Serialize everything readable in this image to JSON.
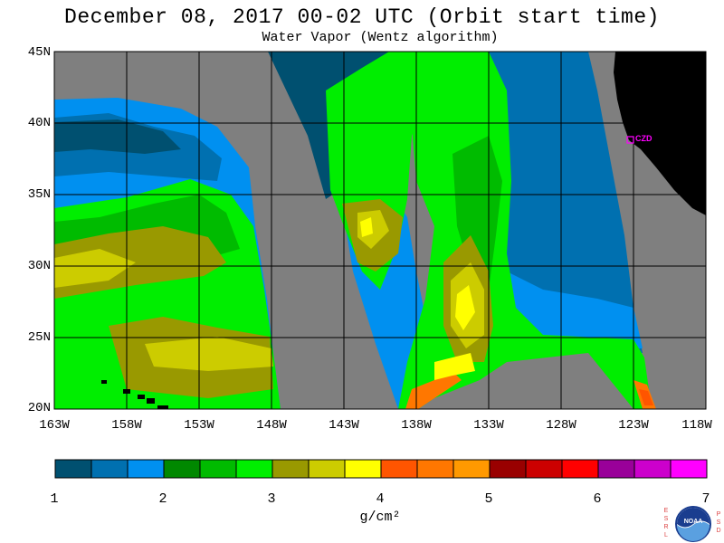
{
  "header": {
    "title": "December 08, 2017  00-02 UTC  (Orbit start time)",
    "subtitle": "Water Vapor (Wentz algorithm)"
  },
  "map": {
    "lat_labels": [
      "45N",
      "40N",
      "35N",
      "30N",
      "25N",
      "20N"
    ],
    "lon_labels": [
      "163W",
      "158W",
      "153W",
      "148W",
      "143W",
      "138W",
      "133W",
      "128W",
      "123W",
      "118W"
    ],
    "station_label": "CZD",
    "colors": {
      "no_data": "#7f7f7f",
      "land": "#000000",
      "station": "#ff00ff"
    }
  },
  "colorbar": {
    "colors": [
      "#005070",
      "#0070b0",
      "#0090f0",
      "#008800",
      "#00bb00",
      "#00ee00",
      "#999900",
      "#cccc00",
      "#ffff00",
      "#ff5500",
      "#ff7700",
      "#ff9900",
      "#990000",
      "#cc0000",
      "#ff0000",
      "#990099",
      "#cc00cc",
      "#ff00ff"
    ],
    "tick_labels": [
      "1",
      "2",
      "3",
      "4",
      "5",
      "6",
      "7"
    ],
    "unit_label": "g/cm²"
  },
  "logo": {
    "left_letters": "ESRL",
    "right_letters": "PSD",
    "emblem_text": "NOAA"
  }
}
